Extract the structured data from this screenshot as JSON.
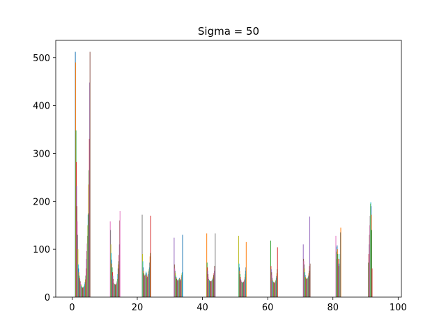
{
  "chart_data": {
    "type": "bar",
    "title": "Sigma = 50",
    "xlabel": "",
    "ylabel": "",
    "xlim": [
      -5,
      101
    ],
    "ylim": [
      0,
      536
    ],
    "xticks": [
      0,
      20,
      40,
      60,
      80,
      100
    ],
    "yticks": [
      0,
      100,
      200,
      300,
      400,
      500
    ],
    "grid": false,
    "legend": "none",
    "palette": [
      "#1f77b4",
      "#ff7f0e",
      "#2ca02c",
      "#d62728",
      "#9467bd",
      "#8c564b",
      "#e377c2",
      "#7f7f7f",
      "#bcbd22",
      "#17becf"
    ],
    "bar_width": 0.09,
    "groups": [
      {
        "start": 0.9,
        "values": [
          512,
          490,
          348,
          282,
          232,
          190,
          158,
          130,
          100,
          68,
          60,
          52,
          45,
          40,
          37,
          33,
          30,
          27,
          25,
          23,
          21,
          20,
          20,
          19,
          20,
          21,
          22,
          23,
          25,
          28,
          32,
          37,
          45,
          60,
          80,
          96,
          112,
          128,
          150,
          172,
          175,
          235,
          265,
          330,
          448,
          512
        ]
      },
      {
        "start": 11.6,
        "values": [
          158,
          140,
          110,
          92,
          78,
          70,
          62,
          52,
          45,
          38,
          33,
          30,
          28,
          27,
          27,
          27,
          26,
          26,
          27,
          28,
          30,
          33,
          38,
          48,
          60,
          68,
          75,
          88,
          110,
          160,
          180
        ]
      },
      {
        "start": 21.4,
        "values": [
          172,
          90,
          75,
          62,
          55,
          50,
          47,
          45,
          44,
          45,
          47,
          50,
          53,
          50,
          45,
          40,
          42,
          45,
          48,
          52,
          55,
          58,
          62,
          72,
          85,
          92,
          170
        ]
      },
      {
        "start": 31.2,
        "values": [
          124,
          68,
          60,
          55,
          50,
          45,
          42,
          40,
          38,
          36,
          35,
          34,
          34,
          35,
          36,
          38,
          40,
          38,
          36,
          34,
          35,
          38,
          42,
          46,
          50,
          52,
          130
        ]
      },
      {
        "start": 41.2,
        "values": [
          133,
          72,
          62,
          55,
          48,
          42,
          38,
          36,
          35,
          34,
          33,
          33,
          33,
          33,
          33,
          34,
          35,
          36,
          38,
          40,
          42,
          46,
          50,
          55,
          65,
          62,
          133
        ]
      },
      {
        "start": 51.0,
        "values": [
          128,
          70,
          62,
          55,
          48,
          42,
          38,
          35,
          33,
          32,
          31,
          31,
          30,
          30,
          31,
          32,
          33,
          35,
          38,
          42,
          48,
          55,
          62,
          115
        ]
      },
      {
        "start": 60.8,
        "values": [
          118,
          65,
          58,
          52,
          46,
          40,
          36,
          34,
          32,
          31,
          30,
          30,
          30,
          31,
          32,
          34,
          36,
          40,
          44,
          50,
          58,
          104
        ]
      },
      {
        "start": 70.8,
        "values": [
          110,
          80,
          75,
          68,
          60,
          52,
          46,
          42,
          40,
          38,
          38,
          38,
          38,
          39,
          40,
          42,
          45,
          50,
          55,
          65,
          168,
          70
        ]
      },
      {
        "start": 80.8,
        "values": [
          128,
          80,
          95,
          105,
          108,
          100,
          90,
          80,
          70,
          65,
          65,
          70,
          80,
          90,
          135,
          145
        ]
      },
      {
        "start": 90.8,
        "values": [
          72,
          90,
          110,
          130,
          150,
          170,
          195,
          198,
          190,
          172,
          140,
          60
        ]
      }
    ]
  }
}
